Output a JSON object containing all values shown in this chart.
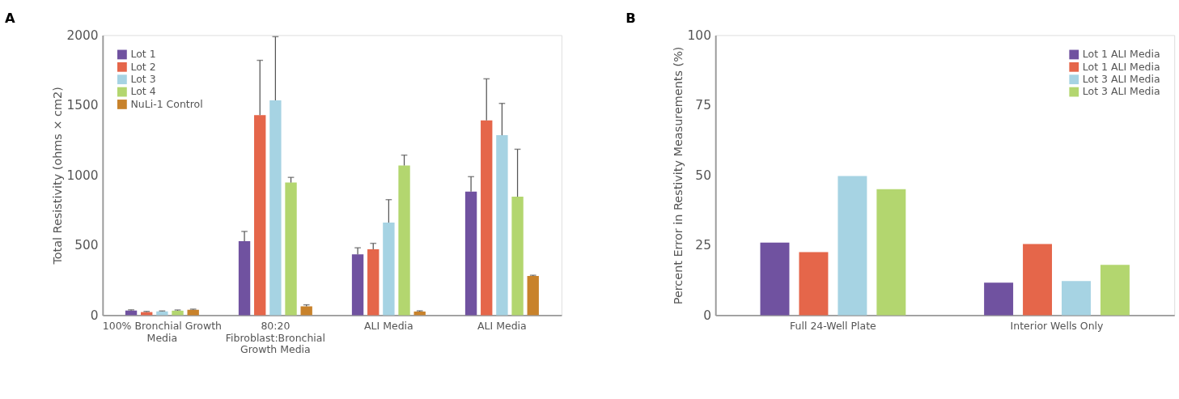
{
  "chart_data": [
    {
      "type": "bar",
      "title": "A",
      "ylabel": "Total Resistivity (ohms × cm2)",
      "categories": [
        "100% Bronchial Growth Media",
        "80:20 Fibroblast:Bronchial Growth Media",
        "ALI Media",
        "ALI Media"
      ],
      "ylim": [
        0,
        2000
      ],
      "yticks": [
        0,
        500,
        1000,
        1500,
        2000
      ],
      "grid": false,
      "legend": "top left",
      "series": [
        {
          "name": "Lot 1",
          "color": "#7052a0",
          "values": [
            33,
            529,
            434,
            883
          ],
          "errors": [
            [
              33,
              38
            ],
            [
              529,
              598
            ],
            [
              434,
              481
            ],
            [
              883,
              989
            ]
          ]
        },
        {
          "name": "Lot 2",
          "color": "#e5664a",
          "values": [
            22,
            1428,
            471,
            1391
          ],
          "errors": [
            [
              22,
              27
            ],
            [
              1428,
              1820
            ],
            [
              471,
              513
            ],
            [
              1391,
              1688
            ]
          ]
        },
        {
          "name": "Lot 3",
          "color": "#a6d3e3",
          "values": [
            27,
            1534,
            661,
            1285
          ],
          "errors": [
            [
              27,
              30
            ],
            [
              1534,
              1989
            ],
            [
              661,
              825
            ],
            [
              1285,
              1513
            ]
          ]
        },
        {
          "name": "Lot 4",
          "color": "#b3d66f",
          "values": [
            32,
            947,
            1069,
            846
          ],
          "errors": [
            [
              32,
              37
            ],
            [
              947,
              984
            ],
            [
              1069,
              1143
            ],
            [
              846,
              1185
            ]
          ]
        },
        {
          "name": "NuLi-1 Control",
          "color": "#c8822b",
          "values": [
            38,
            63,
            26,
            280
          ],
          "errors": [
            [
              38,
              43
            ],
            [
              63,
              74
            ],
            [
              26,
              31
            ],
            [
              280,
              285
            ]
          ]
        }
      ]
    },
    {
      "type": "bar",
      "title": "B",
      "ylabel": "Percent Error in Restivity Measurements (%)",
      "categories": [
        "Full 24-Well Plate",
        "Interior Wells Only"
      ],
      "ylim": [
        0,
        100
      ],
      "yticks": [
        0,
        25,
        50,
        75,
        100
      ],
      "grid": false,
      "legend": "top right",
      "series": [
        {
          "name": "Lot 1 ALI Media",
          "color": "#7052a0",
          "values": [
            25.9,
            11.6
          ]
        },
        {
          "name": "Lot 1 ALI Media",
          "color": "#e5664a",
          "values": [
            22.5,
            25.4
          ]
        },
        {
          "name": "Lot 3 ALI Media",
          "color": "#a6d3e3",
          "values": [
            49.7,
            12.2
          ]
        },
        {
          "name": "Lot 3 ALI Media",
          "color": "#b3d66f",
          "values": [
            45,
            18
          ]
        }
      ]
    }
  ]
}
